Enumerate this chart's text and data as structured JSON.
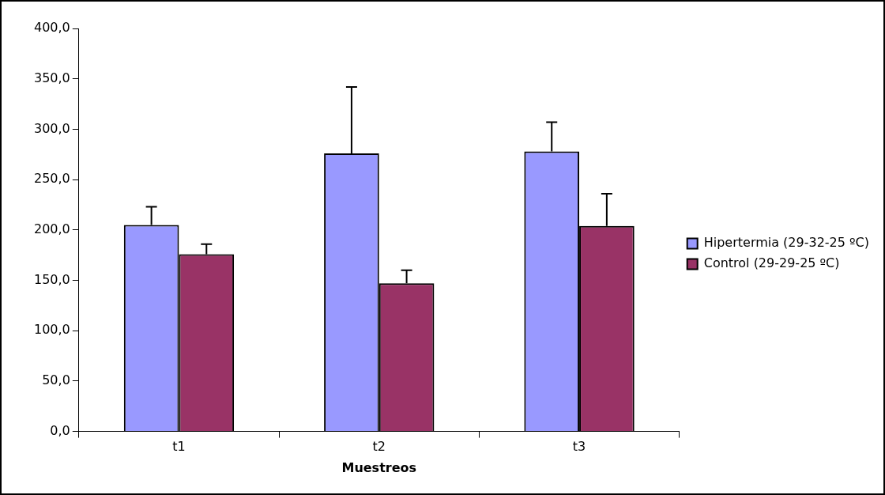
{
  "chart_data": {
    "type": "bar",
    "xlabel": "Muestreos",
    "categories": [
      "t1",
      "t2",
      "t3"
    ],
    "series": [
      {
        "name": "Hipertermia (29-32-25 ºC)",
        "color": "#9999ff",
        "values": [
          205,
          276,
          278
        ],
        "errors": [
          [
            205,
            223
          ],
          [
            276,
            342
          ],
          [
            278,
            307
          ]
        ]
      },
      {
        "name": "Control (29-29-25 ºC)",
        "color": "#993366",
        "values": [
          176,
          147,
          204
        ],
        "errors": [
          [
            176,
            186
          ],
          [
            147,
            160
          ],
          [
            204,
            236
          ]
        ]
      }
    ],
    "ylim": [
      0,
      400
    ],
    "yticks": [
      {
        "value": 0,
        "label": "0,0"
      },
      {
        "value": 50,
        "label": "50,0"
      },
      {
        "value": 100,
        "label": "100,0"
      },
      {
        "value": 150,
        "label": "150,0"
      },
      {
        "value": 200,
        "label": "200,0"
      },
      {
        "value": 250,
        "label": "250,0"
      },
      {
        "value": 300,
        "label": "300,0"
      },
      {
        "value": 350,
        "label": "350,0"
      },
      {
        "value": 400,
        "label": "400,0"
      }
    ],
    "grid": false,
    "legend": "right"
  }
}
